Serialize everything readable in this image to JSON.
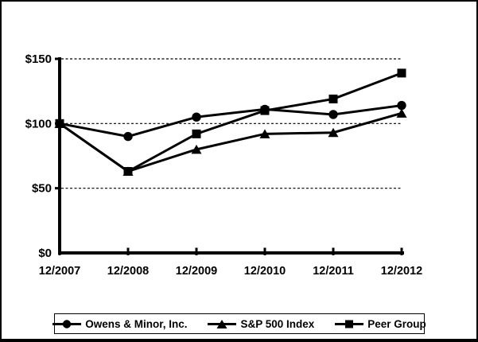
{
  "chart_data": {
    "type": "line",
    "categories": [
      "12/2007",
      "12/2008",
      "12/2009",
      "12/2010",
      "12/2011",
      "12/2012"
    ],
    "series": [
      {
        "name": "Owens & Minor, Inc.",
        "marker": "circle",
        "values": [
          100,
          90,
          105,
          111,
          107,
          114
        ]
      },
      {
        "name": "S&P 500 Index",
        "marker": "triangle",
        "values": [
          100,
          63,
          80,
          92,
          93,
          108
        ]
      },
      {
        "name": "Peer Group",
        "marker": "square",
        "values": [
          100,
          63,
          92,
          110,
          119,
          139
        ]
      }
    ],
    "ylim": [
      0,
      150
    ],
    "y_ticks": [
      {
        "value": 0,
        "label": "$0"
      },
      {
        "value": 50,
        "label": "$50"
      },
      {
        "value": 100,
        "label": "$100"
      },
      {
        "value": 150,
        "label": "$150"
      }
    ],
    "gridline_values": [
      50,
      100,
      150
    ],
    "grid": "dashed horizontal gridlines",
    "legend_position": "bottom",
    "line_color": "#000000",
    "background_color": "#ffffff"
  }
}
